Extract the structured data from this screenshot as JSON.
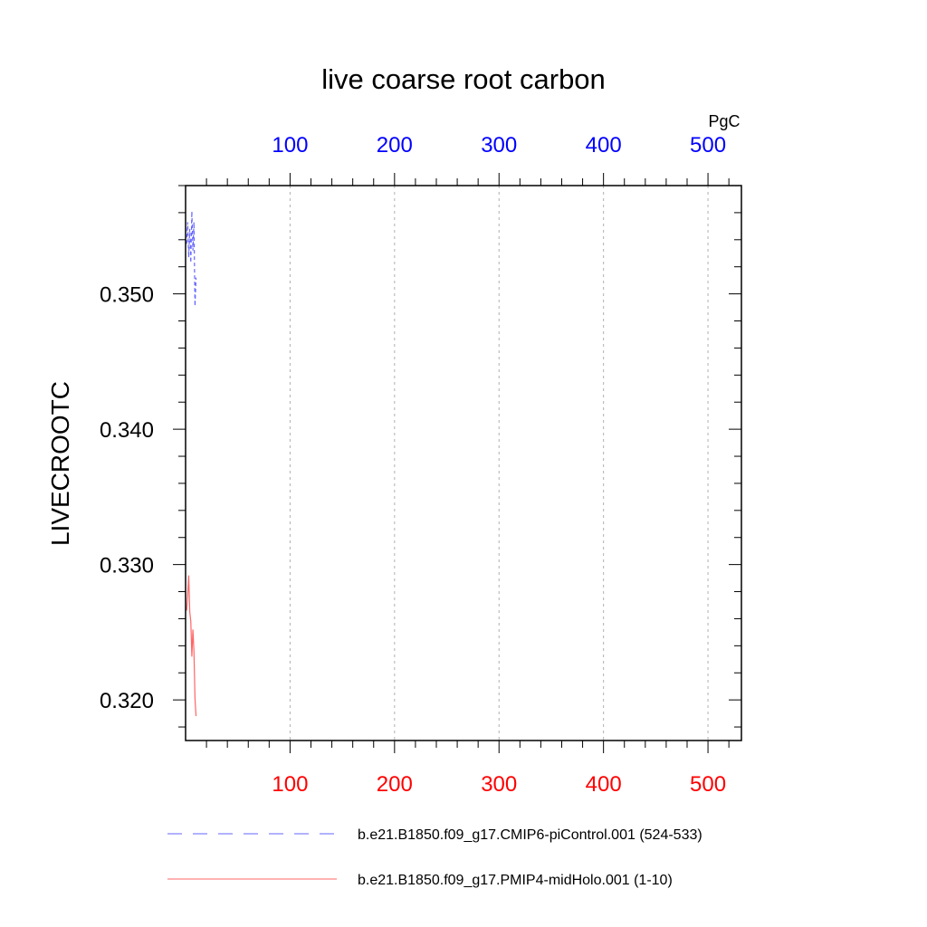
{
  "chart_data": {
    "type": "line",
    "title": "live coarse root carbon",
    "ylabel": "LIVECROOTC",
    "top_axis_unit": "PgC",
    "xlim": [
      0,
      532
    ],
    "ylim": [
      0.317,
      0.358
    ],
    "x_ticks": [
      100,
      200,
      300,
      400,
      500
    ],
    "x_tick_labels": [
      "100",
      "200",
      "300",
      "400",
      "500"
    ],
    "y_ticks": [
      0.32,
      0.33,
      0.34,
      0.35
    ],
    "y_tick_labels": [
      "0.320",
      "0.330",
      "0.340",
      "0.350"
    ],
    "grid": "vertical-dashed",
    "top_axis_color": "#0000ff",
    "bottom_axis_color": "#ff0000",
    "series": [
      {
        "name": "b.e21.B1850.f09_g17.CMIP6-piControl.001 (524-533)",
        "color": "#6666ff",
        "dash": "dashed",
        "x": [
          1,
          2,
          3,
          4,
          5,
          6,
          7,
          8,
          9,
          10
        ],
        "y": [
          0.3537,
          0.3553,
          0.3527,
          0.3548,
          0.3523,
          0.3561,
          0.3532,
          0.3553,
          0.3491,
          0.3512
        ]
      },
      {
        "name": "b.e21.B1850.f09_g17.PMIP4-midHolo.001 (1-10)",
        "color": "#ff6666",
        "dash": "solid",
        "x": [
          1,
          2,
          3,
          4,
          5,
          6,
          7,
          8,
          9,
          10
        ],
        "y": [
          0.3266,
          0.3277,
          0.3292,
          0.3265,
          0.3258,
          0.3232,
          0.3252,
          0.3236,
          0.3201,
          0.3188
        ]
      }
    ]
  }
}
